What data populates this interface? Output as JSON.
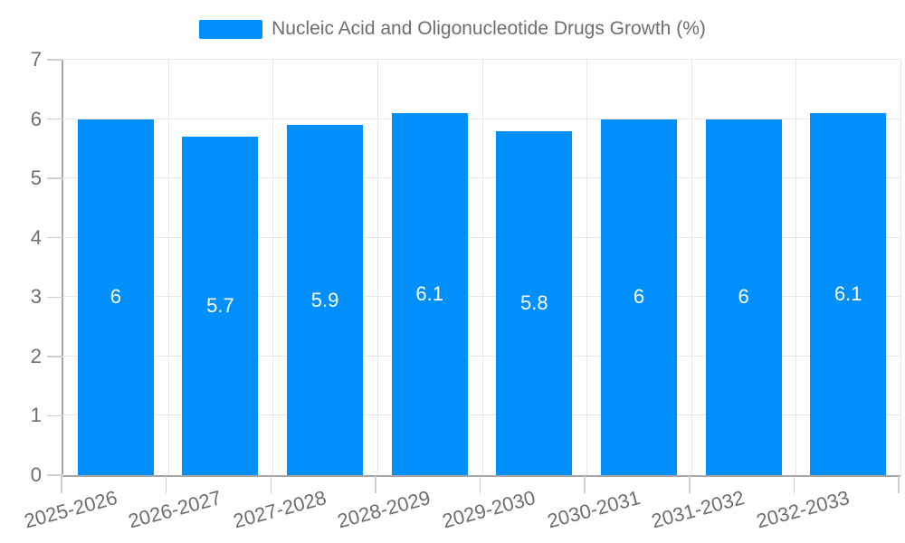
{
  "chart_data": {
    "type": "bar",
    "title": "Nucleic Acid and Oligonucleotide Drugs Growth (%)",
    "legend_position": "top",
    "categories": [
      "2025-2026",
      "2026-2027",
      "2027-2028",
      "2028-2029",
      "2029-2030",
      "2030-2031",
      "2031-2032",
      "2032-2033"
    ],
    "values": [
      6,
      5.7,
      5.9,
      6.1,
      5.8,
      6,
      6,
      6.1
    ],
    "value_labels": [
      "6",
      "5.7",
      "5.9",
      "6.1",
      "5.8",
      "6",
      "6",
      "6.1"
    ],
    "xlabel": "",
    "ylabel": "",
    "ylim": [
      0,
      7
    ],
    "yticks": [
      0,
      1,
      2,
      3,
      4,
      5,
      6,
      7
    ],
    "grid": true,
    "colors": {
      "bar": "#008FFB",
      "value_label": "#ffffff",
      "axis_text": "#6e6e6e",
      "title_text": "#6e6e6e",
      "grid": "#e7e7e7",
      "axis_line": "#a6a6a6",
      "tick": "#cfcfcf",
      "background": "#ffffff"
    }
  }
}
